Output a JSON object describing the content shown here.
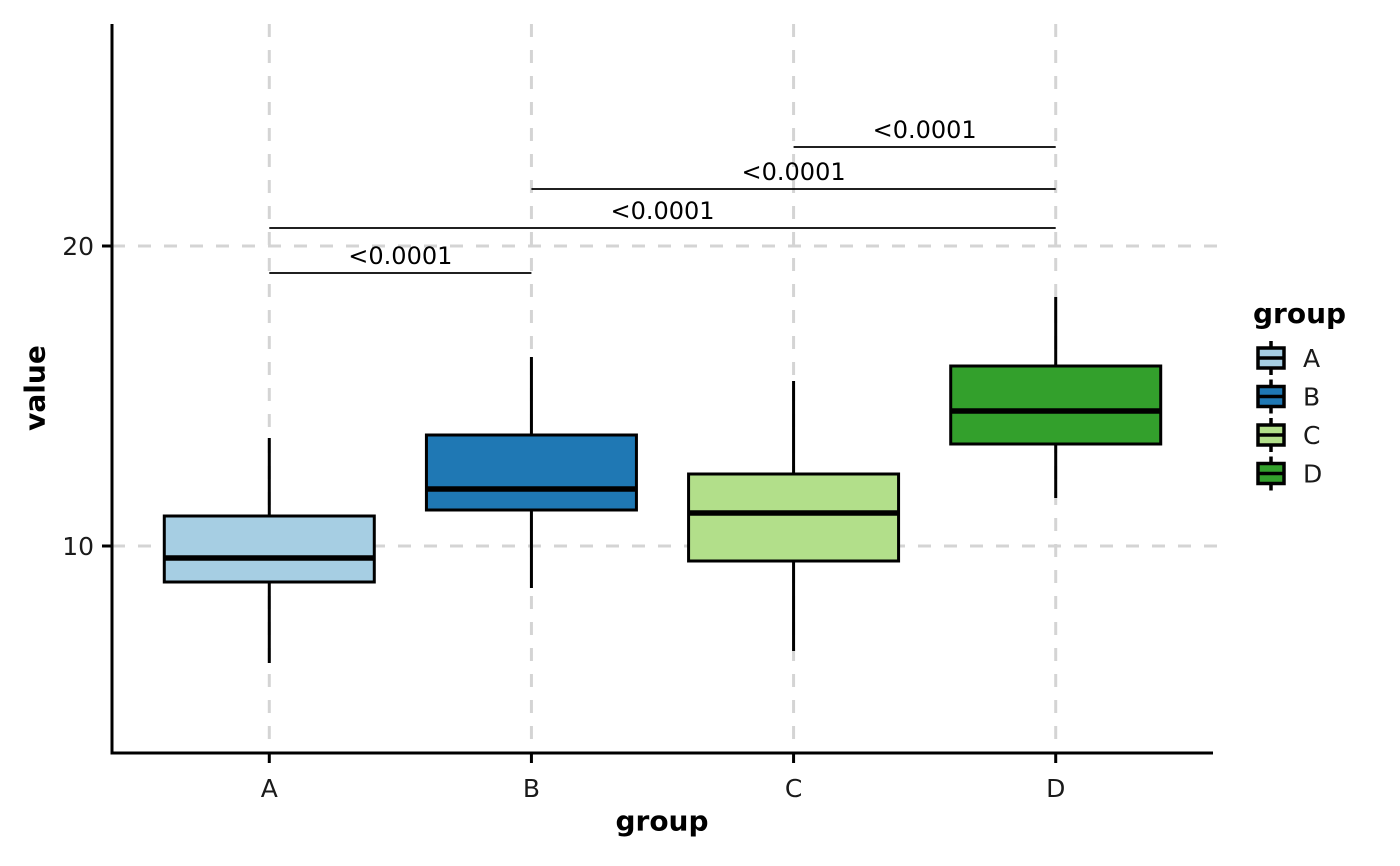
{
  "chart_data": {
    "type": "boxplot",
    "title": "",
    "xlabel": "group",
    "ylabel": "value",
    "categories": [
      "A",
      "B",
      "C",
      "D"
    ],
    "ylim": [
      3.1,
      27.4
    ],
    "yticks": [
      10,
      20
    ],
    "grid": "dashed-both-axes",
    "legend_position": "right",
    "series": [
      {
        "name": "A",
        "color": "#a6cee3",
        "whisker_low": 6.1,
        "q1": 8.8,
        "median": 9.6,
        "q3": 11.0,
        "whisker_high": 13.6
      },
      {
        "name": "B",
        "color": "#1f78b4",
        "whisker_low": 8.6,
        "q1": 11.2,
        "median": 11.9,
        "q3": 13.7,
        "whisker_high": 16.3
      },
      {
        "name": "C",
        "color": "#b2df8a",
        "whisker_low": 6.5,
        "q1": 9.5,
        "median": 11.1,
        "q3": 12.4,
        "whisker_high": 15.5
      },
      {
        "name": "D",
        "color": "#33a02c",
        "whisker_low": 11.6,
        "q1": 13.4,
        "median": 14.5,
        "q3": 16.0,
        "whisker_high": 18.3
      }
    ],
    "annotations": [
      {
        "from": "A",
        "to": "B",
        "label": "<0.0001",
        "y": 19.1
      },
      {
        "from": "A",
        "to": "D",
        "label": "<0.0001",
        "y": 20.6
      },
      {
        "from": "B",
        "to": "D",
        "label": "<0.0001",
        "y": 21.9
      },
      {
        "from": "C",
        "to": "D",
        "label": "<0.0001",
        "y": 23.3
      }
    ],
    "legend": {
      "title": "group",
      "entries": [
        {
          "label": "A",
          "color": "#a6cee3"
        },
        {
          "label": "B",
          "color": "#1f78b4"
        },
        {
          "label": "C",
          "color": "#b2df8a"
        },
        {
          "label": "D",
          "color": "#33a02c"
        }
      ]
    },
    "style": {
      "gridline_color": "#d4d4d4",
      "axis_color": "#000000",
      "tick_label_color": "#1a1a1a",
      "box_border_color": "#000000"
    }
  }
}
